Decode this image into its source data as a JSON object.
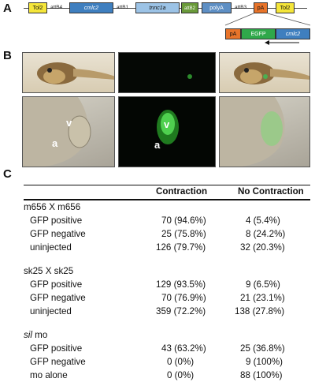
{
  "panels": {
    "a": "A",
    "b": "B",
    "c": "C"
  },
  "construct": {
    "tol2_left": "Tol2",
    "attB4": "attB4",
    "cmlc2": "cmlc2",
    "attB1": "attB1",
    "tnnc1a": "tnnc1a",
    "attB2": "attB2",
    "polyA": "polyA",
    "attB3": "attB3",
    "pA": "pA",
    "tol2_right": "Tol2",
    "inset_pA": "pA",
    "inset_EGFP": "EGFP",
    "inset_cmlc2": "cmlc2",
    "colors": {
      "tol2": "#f5e63a",
      "cmlc2": "#3f7fbf",
      "tnnc1a": "#9cc3e6",
      "attB2": "#6a9a3a",
      "polyA": "#5e8fc4",
      "pA": "#e8742a",
      "EGFP": "#2fa84a"
    }
  },
  "photos": {
    "v_label_top": "v",
    "a_label_top": "a",
    "v_label_mid": "v",
    "a_label_mid": "a"
  },
  "table": {
    "col_contraction": "Contraction",
    "col_no_contraction": "No Contraction",
    "groups": [
      {
        "title": "m656 X m656",
        "rows": [
          {
            "label": "GFP positive",
            "c": "70 (94.6%)",
            "n": "4 (5.4%)"
          },
          {
            "label": "GFP negative",
            "c": "25 (75.8%)",
            "n": "8 (24.2%)"
          },
          {
            "label": "uninjected",
            "c": "126 (79.7%)",
            "n": "32 (20.3%)"
          }
        ]
      },
      {
        "title": "sk25 X sk25",
        "rows": [
          {
            "label": "GFP positive",
            "c": "129 (93.5%)",
            "n": "9 (6.5%)"
          },
          {
            "label": "GFP negative",
            "c": "70 (76.9%)",
            "n": "21 (23.1%)"
          },
          {
            "label": "uninjected",
            "c": "359 (72.2%)",
            "n": "138 (27.8%)"
          }
        ]
      },
      {
        "title_italic": "sil",
        "title_rest": " mo",
        "rows": [
          {
            "label": "GFP positive",
            "c": "43 (63.2%)",
            "n": "25 (36.8%)"
          },
          {
            "label": "GFP negative",
            "c": "0 (0%)",
            "n": "9 (100%)"
          },
          {
            "label": "mo alone",
            "c": "0 (0%)",
            "n": "88 (100%)"
          }
        ]
      }
    ]
  }
}
